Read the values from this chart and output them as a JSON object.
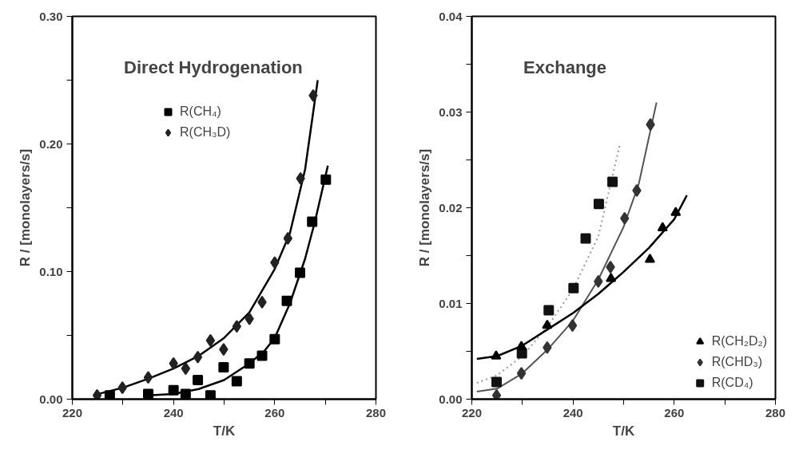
{
  "chart_data": [
    {
      "type": "scatter",
      "title": "Direct Hydrogenation",
      "xlabel": "T/K",
      "ylabel": "R / [monolayers/s]",
      "xlim": [
        220,
        280
      ],
      "ylim": [
        0,
        0.3
      ],
      "xticks": [
        220,
        {
          "value": 230,
          "label": null
        },
        240,
        {
          "value": 250,
          "label": null
        },
        260,
        {
          "value": 270,
          "label": null
        },
        280
      ],
      "yticks": [
        {
          "value": 0,
          "label": "0.00"
        },
        {
          "value": 0.05,
          "label": null
        },
        {
          "value": 0.1,
          "label": "0.10"
        },
        {
          "value": 0.15,
          "label": null
        },
        {
          "value": 0.2,
          "label": "0.20"
        },
        {
          "value": 0.25,
          "label": null
        },
        {
          "value": 0.3,
          "label": "0.30"
        }
      ],
      "grid": false,
      "legend": "top left",
      "series": [
        {
          "name": "R(CH₄)",
          "marker": "square",
          "color": "#000000",
          "x": [
            227.4,
            235,
            240,
            242.4,
            244.8,
            247.3,
            249.9,
            252.5,
            255,
            257.5,
            260,
            262.4,
            265,
            267.4,
            270.1
          ],
          "values": [
            0.003,
            0.004,
            0.007,
            0.004,
            0.015,
            0.003,
            0.025,
            0.014,
            0.028,
            0.034,
            0.047,
            0.077,
            0.099,
            0.139,
            0.172
          ]
        },
        {
          "name": "R(CH₃D)",
          "marker": "diamond",
          "color": "#222222",
          "x": [
            224.9,
            229.9,
            235,
            240,
            242.4,
            244.8,
            247.3,
            249.9,
            252.5,
            255,
            257.5,
            260,
            262.6,
            265.1,
            267.6
          ],
          "values": [
            0.003,
            0.009,
            0.017,
            0.028,
            0.024,
            0.033,
            0.046,
            0.039,
            0.057,
            0.063,
            0.076,
            0.107,
            0.126,
            0.173,
            0.238
          ]
        },
        {
          "type": "line",
          "line_style": "solid",
          "color": "#000000",
          "x": [
            235,
            240,
            245,
            250,
            255,
            258,
            260,
            263,
            266,
            268,
            270.5
          ],
          "values": [
            0.003,
            0.004,
            0.008,
            0.015,
            0.028,
            0.038,
            0.048,
            0.075,
            0.11,
            0.14,
            0.183
          ]
        },
        {
          "type": "line",
          "line_style": "solid",
          "color": "#000000",
          "x": [
            225,
            230,
            235,
            240,
            245,
            250,
            255,
            260,
            263,
            266,
            268.5
          ],
          "values": [
            0.004,
            0.009,
            0.016,
            0.024,
            0.034,
            0.048,
            0.068,
            0.102,
            0.13,
            0.18,
            0.25
          ]
        }
      ]
    },
    {
      "type": "scatter",
      "title": "Exchange",
      "xlabel": "T/K",
      "ylabel": "R / [monolayers/s]",
      "xlim": [
        220,
        280
      ],
      "ylim": [
        0,
        0.04
      ],
      "xticks": [
        220,
        {
          "value": 230,
          "label": null
        },
        240,
        {
          "value": 250,
          "label": null
        },
        260,
        {
          "value": 270,
          "label": null
        },
        280
      ],
      "yticks": [
        {
          "value": 0,
          "label": "0.00"
        },
        {
          "value": 0.005,
          "label": null
        },
        {
          "value": 0.01,
          "label": "0.01"
        },
        {
          "value": 0.015,
          "label": null
        },
        {
          "value": 0.02,
          "label": "0.02"
        },
        {
          "value": 0.025,
          "label": null
        },
        {
          "value": 0.03,
          "label": "0.03"
        },
        {
          "value": 0.035,
          "label": null
        },
        {
          "value": 0.04,
          "label": "0.04"
        }
      ],
      "grid": false,
      "legend": "bottom right",
      "series": [
        {
          "name": "R(CH₂D₂)",
          "marker": "triangle",
          "color": "#000000",
          "x": [
            224.8,
            229.8,
            234.9,
            247.5,
            255.2,
            257.7,
            260.3
          ],
          "values": [
            0.0045,
            0.0055,
            0.0077,
            0.0126,
            0.0146,
            0.0179,
            0.0195
          ]
        },
        {
          "name": "R(CHD₃)",
          "marker": "diamond",
          "color": "#333333",
          "x": [
            224.9,
            229.8,
            234.9,
            239.9,
            245,
            247.4,
            250.2,
            252.6,
            255.3
          ],
          "values": [
            0.0004,
            0.0027,
            0.0054,
            0.0077,
            0.0123,
            0.0138,
            0.0189,
            0.0218,
            0.0287
          ]
        },
        {
          "name": "R(CD₄)",
          "marker": "square",
          "color": "#111111",
          "x": [
            224.9,
            229.9,
            235.2,
            240.1,
            242.5,
            245.1,
            247.8
          ],
          "values": [
            0.0018,
            0.0048,
            0.0093,
            0.0116,
            0.0168,
            0.0204,
            0.0227
          ]
        },
        {
          "type": "line",
          "line_style": "solid",
          "color": "#000000",
          "x": [
            221,
            225,
            230,
            235,
            240,
            245,
            250,
            255,
            260,
            262.5
          ],
          "values": [
            0.0042,
            0.0045,
            0.0056,
            0.0073,
            0.009,
            0.011,
            0.0133,
            0.0158,
            0.0188,
            0.0213
          ]
        },
        {
          "type": "line",
          "line_style": "solid",
          "color": "#555555",
          "x": [
            221,
            225,
            230,
            235,
            240,
            245,
            250,
            253,
            256.5
          ],
          "values": [
            0.0008,
            0.0011,
            0.0027,
            0.0052,
            0.0082,
            0.0125,
            0.018,
            0.0225,
            0.031
          ]
        },
        {
          "type": "line",
          "line_style": "dotted",
          "color": "#999999",
          "x": [
            221,
            225,
            230,
            235,
            240,
            245,
            249.3
          ],
          "values": [
            0.0017,
            0.0025,
            0.0045,
            0.0076,
            0.0115,
            0.017,
            0.0267
          ]
        }
      ]
    }
  ]
}
